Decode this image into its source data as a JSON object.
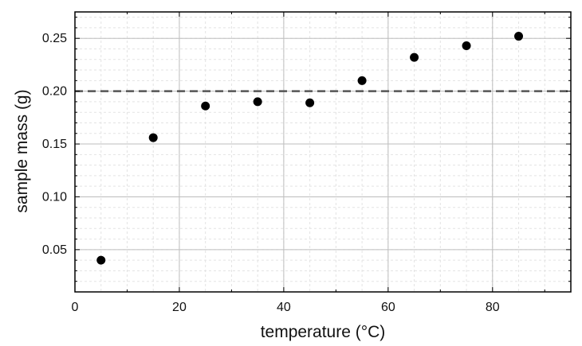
{
  "chart_data": {
    "type": "scatter",
    "title": "",
    "xlabel": "temperature (°C)",
    "ylabel": "sample mass (g)",
    "xlim": [
      0,
      95
    ],
    "ylim": [
      0.01,
      0.275
    ],
    "xticks": [
      0,
      20,
      40,
      60,
      80
    ],
    "yticks": [
      0.05,
      0.1,
      0.15,
      0.2,
      0.25
    ],
    "xtick_labels": [
      "0",
      "20",
      "40",
      "60",
      "80"
    ],
    "ytick_labels": [
      "0.05",
      "0.10",
      "0.15",
      "0.20",
      "0.25"
    ],
    "grid": true,
    "minor_grid": true,
    "legend": "none",
    "colors": {
      "points": "#000000",
      "reference_line": "#555555",
      "major_grid": "#bdbdbd",
      "minor_grid": "#e3e3e3",
      "axes": "#000000"
    },
    "reference_line": {
      "y": 0.2,
      "style": "dashed"
    },
    "series": [
      {
        "x": [
          5,
          15,
          25,
          35,
          45,
          55,
          65,
          75,
          85
        ],
        "y": [
          0.04,
          0.156,
          0.186,
          0.19,
          0.189,
          0.21,
          0.232,
          0.243,
          0.252
        ]
      }
    ]
  }
}
